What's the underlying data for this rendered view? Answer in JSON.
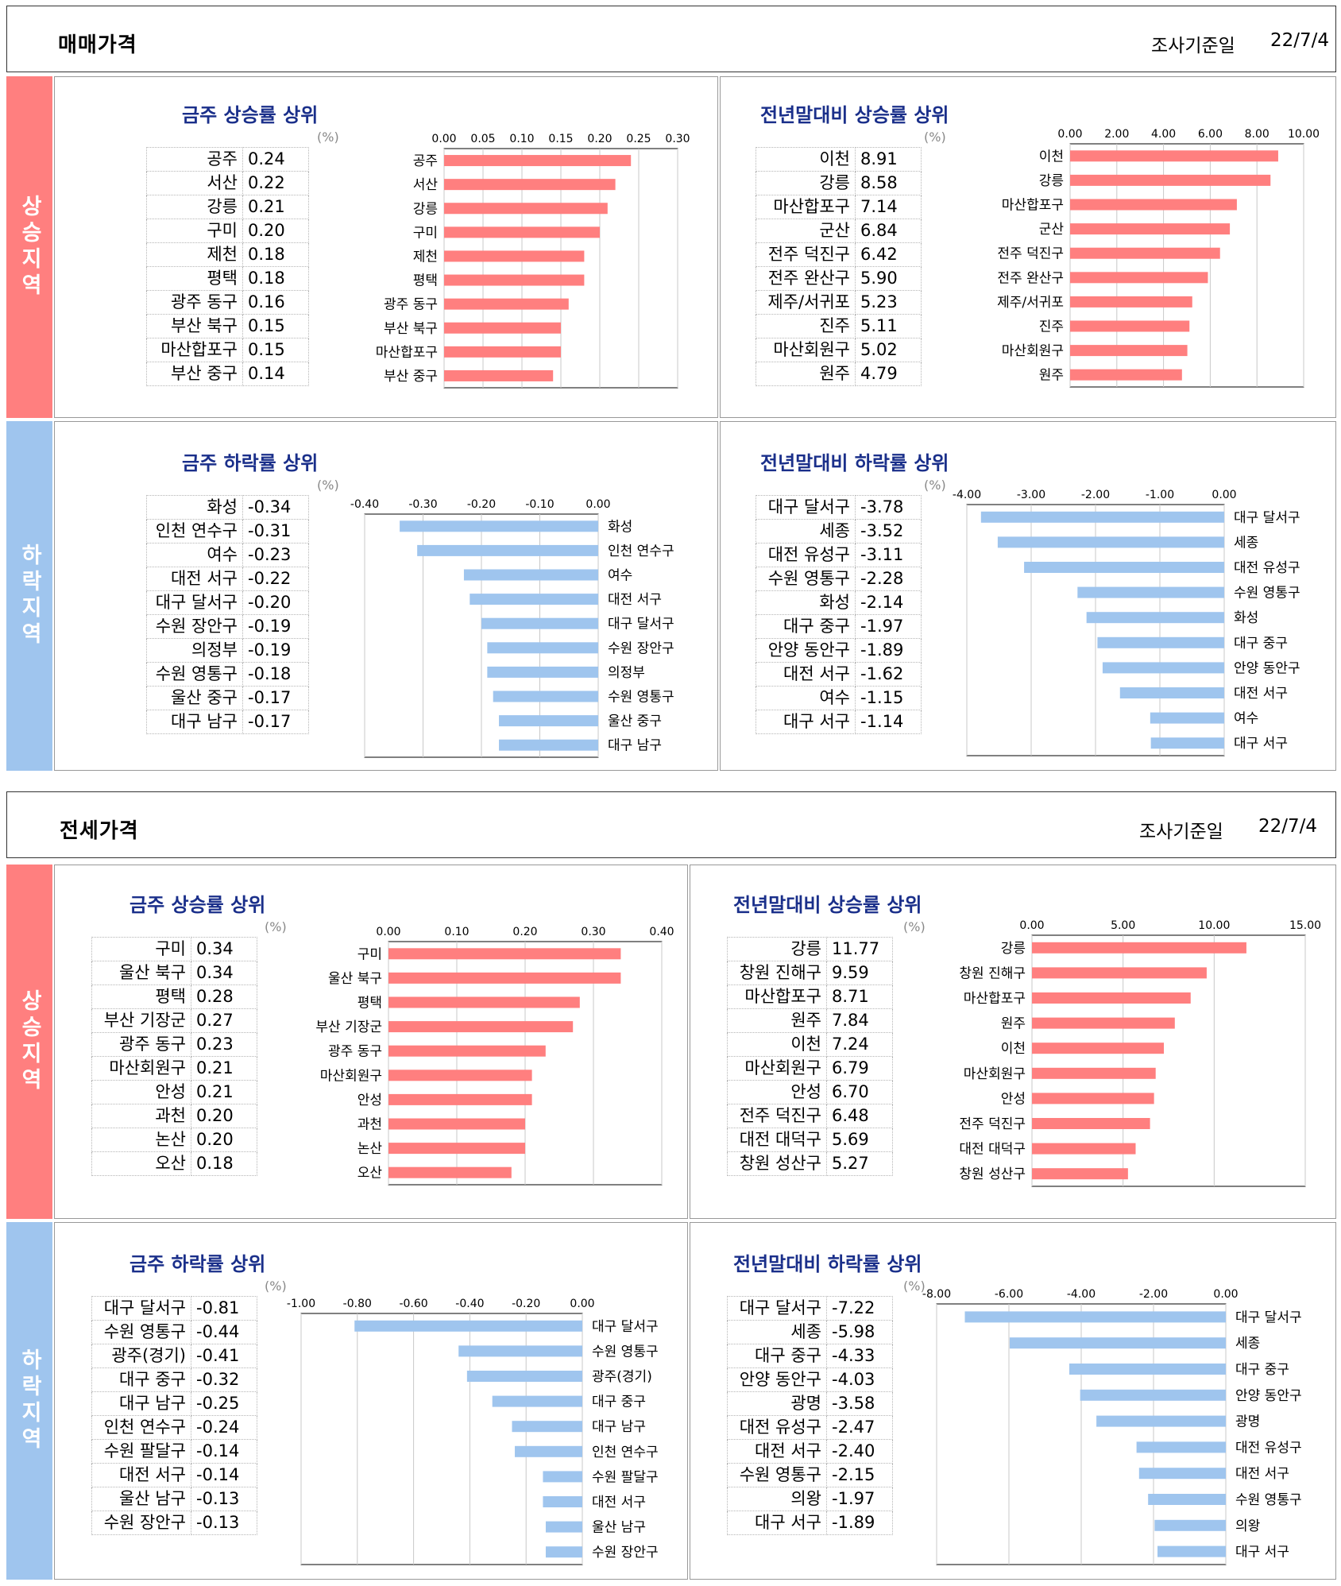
{
  "sections": [
    {
      "title": "매매가격",
      "date_label": "조사기준일",
      "date_value": "22/7/4",
      "up_label": "상승지역",
      "down_label": "하락지역",
      "panels": [
        {
          "title": "금주 상승률 상위",
          "unit": "(%)",
          "names": [
            "공주",
            "서산",
            "강릉",
            "구미",
            "제천",
            "평택",
            "광주 동구",
            "부산 북구",
            "마산합포구",
            "부산 중구"
          ],
          "values": [
            "0.24",
            "0.22",
            "0.21",
            "0.20",
            "0.18",
            "0.18",
            "0.16",
            "0.15",
            "0.15",
            "0.14"
          ]
        },
        {
          "title": "전년말대비 상승률 상위",
          "unit": "(%)",
          "names": [
            "이천",
            "강릉",
            "마산합포구",
            "군산",
            "전주 덕진구",
            "전주 완산구",
            "제주/서귀포",
            "진주",
            "마산회원구",
            "원주"
          ],
          "values": [
            "8.91",
            "8.58",
            "7.14",
            "6.84",
            "6.42",
            "5.90",
            "5.23",
            "5.11",
            "5.02",
            "4.79"
          ]
        },
        {
          "title": "금주 하락률 상위",
          "unit": "(%)",
          "names": [
            "화성",
            "인천 연수구",
            "여수",
            "대전 서구",
            "대구 달서구",
            "수원 장안구",
            "의정부",
            "수원 영통구",
            "울산 중구",
            "대구 남구"
          ],
          "values": [
            "-0.34",
            "-0.31",
            "-0.23",
            "-0.22",
            "-0.20",
            "-0.19",
            "-0.19",
            "-0.18",
            "-0.17",
            "-0.17"
          ]
        },
        {
          "title": "전년말대비 하락률 상위",
          "unit": "(%)",
          "names": [
            "대구 달서구",
            "세종",
            "대전 유성구",
            "수원 영통구",
            "화성",
            "대구 중구",
            "안양 동안구",
            "대전 서구",
            "여수",
            "대구 서구"
          ],
          "values": [
            "-3.78",
            "-3.52",
            "-3.11",
            "-2.28",
            "-2.14",
            "-1.97",
            "-1.89",
            "-1.62",
            "-1.15",
            "-1.14"
          ]
        }
      ]
    },
    {
      "title": "전세가격",
      "date_label": "조사기준일",
      "date_value": "22/7/4",
      "up_label": "상승지역",
      "down_label": "하락지역",
      "panels": [
        {
          "title": "금주 상승률 상위",
          "unit": "(%)",
          "names": [
            "구미",
            "울산 북구",
            "평택",
            "부산 기장군",
            "광주 동구",
            "마산회원구",
            "안성",
            "과천",
            "논산",
            "오산"
          ],
          "values": [
            "0.34",
            "0.34",
            "0.28",
            "0.27",
            "0.23",
            "0.21",
            "0.21",
            "0.20",
            "0.20",
            "0.18"
          ]
        },
        {
          "title": "전년말대비 상승률 상위",
          "unit": "(%)",
          "names": [
            "강릉",
            "창원 진해구",
            "마산합포구",
            "원주",
            "이천",
            "마산회원구",
            "안성",
            "전주 덕진구",
            "대전 대덕구",
            "창원 성산구"
          ],
          "values": [
            "11.77",
            "9.59",
            "8.71",
            "7.84",
            "7.24",
            "6.79",
            "6.70",
            "6.48",
            "5.69",
            "5.27"
          ]
        },
        {
          "title": "금주 하락률 상위",
          "unit": "(%)",
          "names": [
            "대구 달서구",
            "수원 영통구",
            "광주(경기)",
            "대구 중구",
            "대구 남구",
            "인천 연수구",
            "수원 팔달구",
            "대전 서구",
            "울산 남구",
            "수원 장안구"
          ],
          "values": [
            "-0.81",
            "-0.44",
            "-0.41",
            "-0.32",
            "-0.25",
            "-0.24",
            "-0.14",
            "-0.14",
            "-0.13",
            "-0.13"
          ]
        },
        {
          "title": "전년말대비 하락률 상위",
          "unit": "(%)",
          "names": [
            "대구 달서구",
            "세종",
            "대구 중구",
            "안양 동안구",
            "광명",
            "대전 유성구",
            "대전 서구",
            "수원 영통구",
            "의왕",
            "대구 서구"
          ],
          "values": [
            "-7.22",
            "-5.98",
            "-4.33",
            "-4.03",
            "-3.58",
            "-2.47",
            "-2.40",
            "-2.15",
            "-1.97",
            "-1.89"
          ]
        }
      ]
    }
  ],
  "chart_data": [
    {
      "type": "bar",
      "orientation": "horizontal",
      "title": "금주 상승률 상위",
      "categories": [
        "공주",
        "서산",
        "강릉",
        "구미",
        "제천",
        "평택",
        "광주 동구",
        "부산 북구",
        "마산합포구",
        "부산 중구"
      ],
      "values": [
        0.24,
        0.22,
        0.21,
        0.2,
        0.18,
        0.18,
        0.16,
        0.15,
        0.15,
        0.14
      ],
      "xlim": [
        0,
        0.3
      ],
      "ticks": [
        "0.00",
        "0.05",
        "0.10",
        "0.15",
        "0.20",
        "0.25",
        "0.30"
      ],
      "color": "#ff7f7f"
    },
    {
      "type": "bar",
      "orientation": "horizontal",
      "title": "전년말대비 상승률 상위",
      "categories": [
        "이천",
        "강릉",
        "마산합포구",
        "군산",
        "전주 덕진구",
        "전주 완산구",
        "제주/서귀포",
        "진주",
        "마산회원구",
        "원주"
      ],
      "values": [
        8.91,
        8.58,
        7.14,
        6.84,
        6.42,
        5.9,
        5.23,
        5.11,
        5.02,
        4.79
      ],
      "xlim": [
        0,
        10
      ],
      "ticks": [
        "0.00",
        "2.00",
        "4.00",
        "6.00",
        "8.00",
        "10.00"
      ],
      "color": "#ff7f7f"
    },
    {
      "type": "bar",
      "orientation": "horizontal",
      "title": "금주 하락률 상위",
      "categories": [
        "화성",
        "인천 연수구",
        "여수",
        "대전 서구",
        "대구 달서구",
        "수원 장안구",
        "의정부",
        "수원 영통구",
        "울산 중구",
        "대구 남구"
      ],
      "values": [
        -0.34,
        -0.31,
        -0.23,
        -0.22,
        -0.2,
        -0.19,
        -0.19,
        -0.18,
        -0.17,
        -0.17
      ],
      "xlim": [
        -0.4,
        0
      ],
      "ticks": [
        "-0.40",
        "-0.30",
        "-0.20",
        "-0.10",
        "0.00"
      ],
      "color": "#9fc5ee"
    },
    {
      "type": "bar",
      "orientation": "horizontal",
      "title": "전년말대비 하락률 상위",
      "categories": [
        "대구 달서구",
        "세종",
        "대전 유성구",
        "수원 영통구",
        "화성",
        "대구 중구",
        "안양 동안구",
        "대전 서구",
        "여수",
        "대구 서구"
      ],
      "values": [
        -3.78,
        -3.52,
        -3.11,
        -2.28,
        -2.14,
        -1.97,
        -1.89,
        -1.62,
        -1.15,
        -1.14
      ],
      "xlim": [
        -4,
        0
      ],
      "ticks": [
        "-4.00",
        "-3.00",
        "-2.00",
        "-1.00",
        "0.00"
      ],
      "color": "#9fc5ee"
    },
    {
      "type": "bar",
      "orientation": "horizontal",
      "title": "금주 상승률 상위",
      "categories": [
        "구미",
        "울산 북구",
        "평택",
        "부산 기장군",
        "광주 동구",
        "마산회원구",
        "안성",
        "과천",
        "논산",
        "오산"
      ],
      "values": [
        0.34,
        0.34,
        0.28,
        0.27,
        0.23,
        0.21,
        0.21,
        0.2,
        0.2,
        0.18
      ],
      "xlim": [
        0,
        0.4
      ],
      "ticks": [
        "0.00",
        "0.10",
        "0.20",
        "0.30",
        "0.40"
      ],
      "color": "#ff7f7f"
    },
    {
      "type": "bar",
      "orientation": "horizontal",
      "title": "전년말대비 상승률 상위",
      "categories": [
        "강릉",
        "창원 진해구",
        "마산합포구",
        "원주",
        "이천",
        "마산회원구",
        "안성",
        "전주 덕진구",
        "대전 대덕구",
        "창원 성산구"
      ],
      "values": [
        11.77,
        9.59,
        8.71,
        7.84,
        7.24,
        6.79,
        6.7,
        6.48,
        5.69,
        5.27
      ],
      "xlim": [
        0,
        15
      ],
      "ticks": [
        "0.00",
        "5.00",
        "10.00",
        "15.00"
      ],
      "color": "#ff7f7f"
    },
    {
      "type": "bar",
      "orientation": "horizontal",
      "title": "금주 하락률 상위",
      "categories": [
        "대구 달서구",
        "수원 영통구",
        "광주(경기)",
        "대구 중구",
        "대구 남구",
        "인천 연수구",
        "수원 팔달구",
        "대전 서구",
        "울산 남구",
        "수원 장안구"
      ],
      "values": [
        -0.81,
        -0.44,
        -0.41,
        -0.32,
        -0.25,
        -0.24,
        -0.14,
        -0.14,
        -0.13,
        -0.13
      ],
      "xlim": [
        -1,
        0
      ],
      "ticks": [
        "-1.00",
        "-0.80",
        "-0.60",
        "-0.40",
        "-0.20",
        "0.00"
      ],
      "color": "#9fc5ee"
    },
    {
      "type": "bar",
      "orientation": "horizontal",
      "title": "전년말대비 하락률 상위",
      "categories": [
        "대구 달서구",
        "세종",
        "대구 중구",
        "안양 동안구",
        "광명",
        "대전 유성구",
        "대전 서구",
        "수원 영통구",
        "의왕",
        "대구 서구"
      ],
      "values": [
        -7.22,
        -5.98,
        -4.33,
        -4.03,
        -3.58,
        -2.47,
        -2.4,
        -2.15,
        -1.97,
        -1.89
      ],
      "xlim": [
        -8,
        0
      ],
      "ticks": [
        "-8.00",
        "-6.00",
        "-4.00",
        "-2.00",
        "0.00"
      ],
      "color": "#9fc5ee"
    }
  ]
}
